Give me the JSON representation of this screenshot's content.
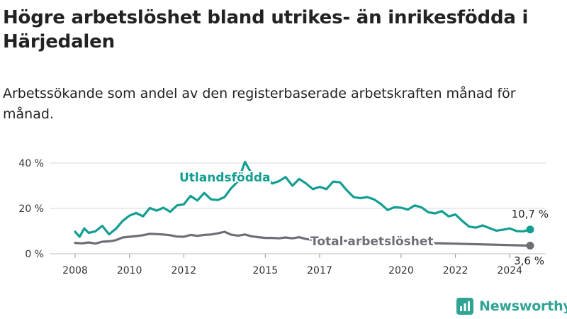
{
  "title": "Högre arbetslöshet bland utrikes- än inrikesfödda i Härjedalen",
  "subtitle": "Arbetssökande som andel av den registerbaserade arbetskraften månad för månad.",
  "brand": "Newsworthy",
  "chart_data": {
    "type": "line",
    "x_tick_labels": [
      "2008",
      "2010",
      "2012",
      "2015",
      "2017",
      "2020",
      "2022",
      "2024"
    ],
    "y_tick_labels": [
      "0 %",
      "20 %",
      "40 %"
    ],
    "y_ticks": [
      0,
      20,
      40
    ],
    "ylim": [
      0,
      40
    ],
    "xlim": [
      "2008-01",
      "2024-10"
    ],
    "grid": true,
    "series": [
      {
        "name": "Utlandsfödda",
        "color": "#139e92",
        "end_label": "10,7 %",
        "points": [
          [
            "2008-01",
            9.7
          ],
          [
            "2008-03",
            7.5
          ],
          [
            "2008-05",
            11.2
          ],
          [
            "2008-07",
            9.2
          ],
          [
            "2008-10",
            9.9
          ],
          [
            "2009-01",
            12.3
          ],
          [
            "2009-04",
            8.6
          ],
          [
            "2009-07",
            11.0
          ],
          [
            "2009-10",
            14.5
          ],
          [
            "2010-01",
            16.8
          ],
          [
            "2010-04",
            18.0
          ],
          [
            "2010-07",
            16.5
          ],
          [
            "2010-10",
            20.2
          ],
          [
            "2011-01",
            19.0
          ],
          [
            "2011-04",
            20.3
          ],
          [
            "2011-07",
            18.5
          ],
          [
            "2011-10",
            21.3
          ],
          [
            "2012-01",
            21.8
          ],
          [
            "2012-04",
            25.5
          ],
          [
            "2012-07",
            23.5
          ],
          [
            "2012-10",
            26.8
          ],
          [
            "2013-01",
            24.0
          ],
          [
            "2013-04",
            23.7
          ],
          [
            "2013-07",
            25.0
          ],
          [
            "2013-10",
            29.0
          ],
          [
            "2014-01",
            32.0
          ],
          [
            "2014-04",
            40.5
          ],
          [
            "2014-07",
            35.3
          ],
          [
            "2014-10",
            33.0
          ],
          [
            "2015-01",
            34.5
          ],
          [
            "2015-04",
            31.0
          ],
          [
            "2015-07",
            32.0
          ],
          [
            "2015-10",
            33.8
          ],
          [
            "2016-01",
            30.0
          ],
          [
            "2016-04",
            33.0
          ],
          [
            "2016-07",
            31.0
          ],
          [
            "2016-10",
            28.5
          ],
          [
            "2017-01",
            29.5
          ],
          [
            "2017-04",
            28.5
          ],
          [
            "2017-07",
            31.8
          ],
          [
            "2017-10",
            31.5
          ],
          [
            "2018-01",
            28.0
          ],
          [
            "2018-04",
            25.0
          ],
          [
            "2018-07",
            24.5
          ],
          [
            "2018-10",
            25.0
          ],
          [
            "2019-01",
            24.0
          ],
          [
            "2019-04",
            22.0
          ],
          [
            "2019-07",
            19.3
          ],
          [
            "2019-10",
            20.5
          ],
          [
            "2020-01",
            20.3
          ],
          [
            "2020-04",
            19.5
          ],
          [
            "2020-07",
            21.3
          ],
          [
            "2020-10",
            20.5
          ],
          [
            "2021-01",
            18.3
          ],
          [
            "2021-04",
            17.8
          ],
          [
            "2021-07",
            18.8
          ],
          [
            "2021-10",
            16.5
          ],
          [
            "2022-01",
            17.3
          ],
          [
            "2022-04",
            14.5
          ],
          [
            "2022-07",
            12.0
          ],
          [
            "2022-10",
            11.5
          ],
          [
            "2023-01",
            12.5
          ],
          [
            "2023-04",
            11.3
          ],
          [
            "2023-07",
            10.2
          ],
          [
            "2023-10",
            10.6
          ],
          [
            "2024-01",
            11.2
          ],
          [
            "2024-04",
            10.0
          ],
          [
            "2024-07",
            9.9
          ],
          [
            "2024-10",
            10.7
          ]
        ]
      },
      {
        "name": "Total arbetslöshet",
        "color": "#6e6e76",
        "end_label": "3,6 %",
        "points": [
          [
            "2008-01",
            4.8
          ],
          [
            "2008-04",
            4.6
          ],
          [
            "2008-07",
            5.0
          ],
          [
            "2008-10",
            4.5
          ],
          [
            "2009-01",
            5.3
          ],
          [
            "2009-04",
            5.5
          ],
          [
            "2009-07",
            6.0
          ],
          [
            "2009-10",
            7.2
          ],
          [
            "2010-01",
            7.5
          ],
          [
            "2010-04",
            7.8
          ],
          [
            "2010-07",
            8.2
          ],
          [
            "2010-10",
            8.8
          ],
          [
            "2011-01",
            8.7
          ],
          [
            "2011-04",
            8.5
          ],
          [
            "2011-07",
            8.2
          ],
          [
            "2011-10",
            7.6
          ],
          [
            "2012-01",
            7.5
          ],
          [
            "2012-04",
            8.3
          ],
          [
            "2012-07",
            7.9
          ],
          [
            "2012-10",
            8.3
          ],
          [
            "2013-01",
            8.5
          ],
          [
            "2013-04",
            9.0
          ],
          [
            "2013-07",
            9.7
          ],
          [
            "2013-10",
            8.4
          ],
          [
            "2014-01",
            8.0
          ],
          [
            "2014-04",
            8.5
          ],
          [
            "2014-07",
            7.7
          ],
          [
            "2014-10",
            7.3
          ],
          [
            "2015-01",
            7.0
          ],
          [
            "2015-04",
            7.0
          ],
          [
            "2015-07",
            6.8
          ],
          [
            "2015-10",
            7.2
          ],
          [
            "2016-01",
            6.8
          ],
          [
            "2016-04",
            7.3
          ],
          [
            "2016-07",
            6.5
          ],
          [
            "2016-10",
            6.2
          ],
          [
            "2017-01",
            6.0
          ],
          [
            "2024-10",
            3.6
          ]
        ]
      }
    ]
  }
}
